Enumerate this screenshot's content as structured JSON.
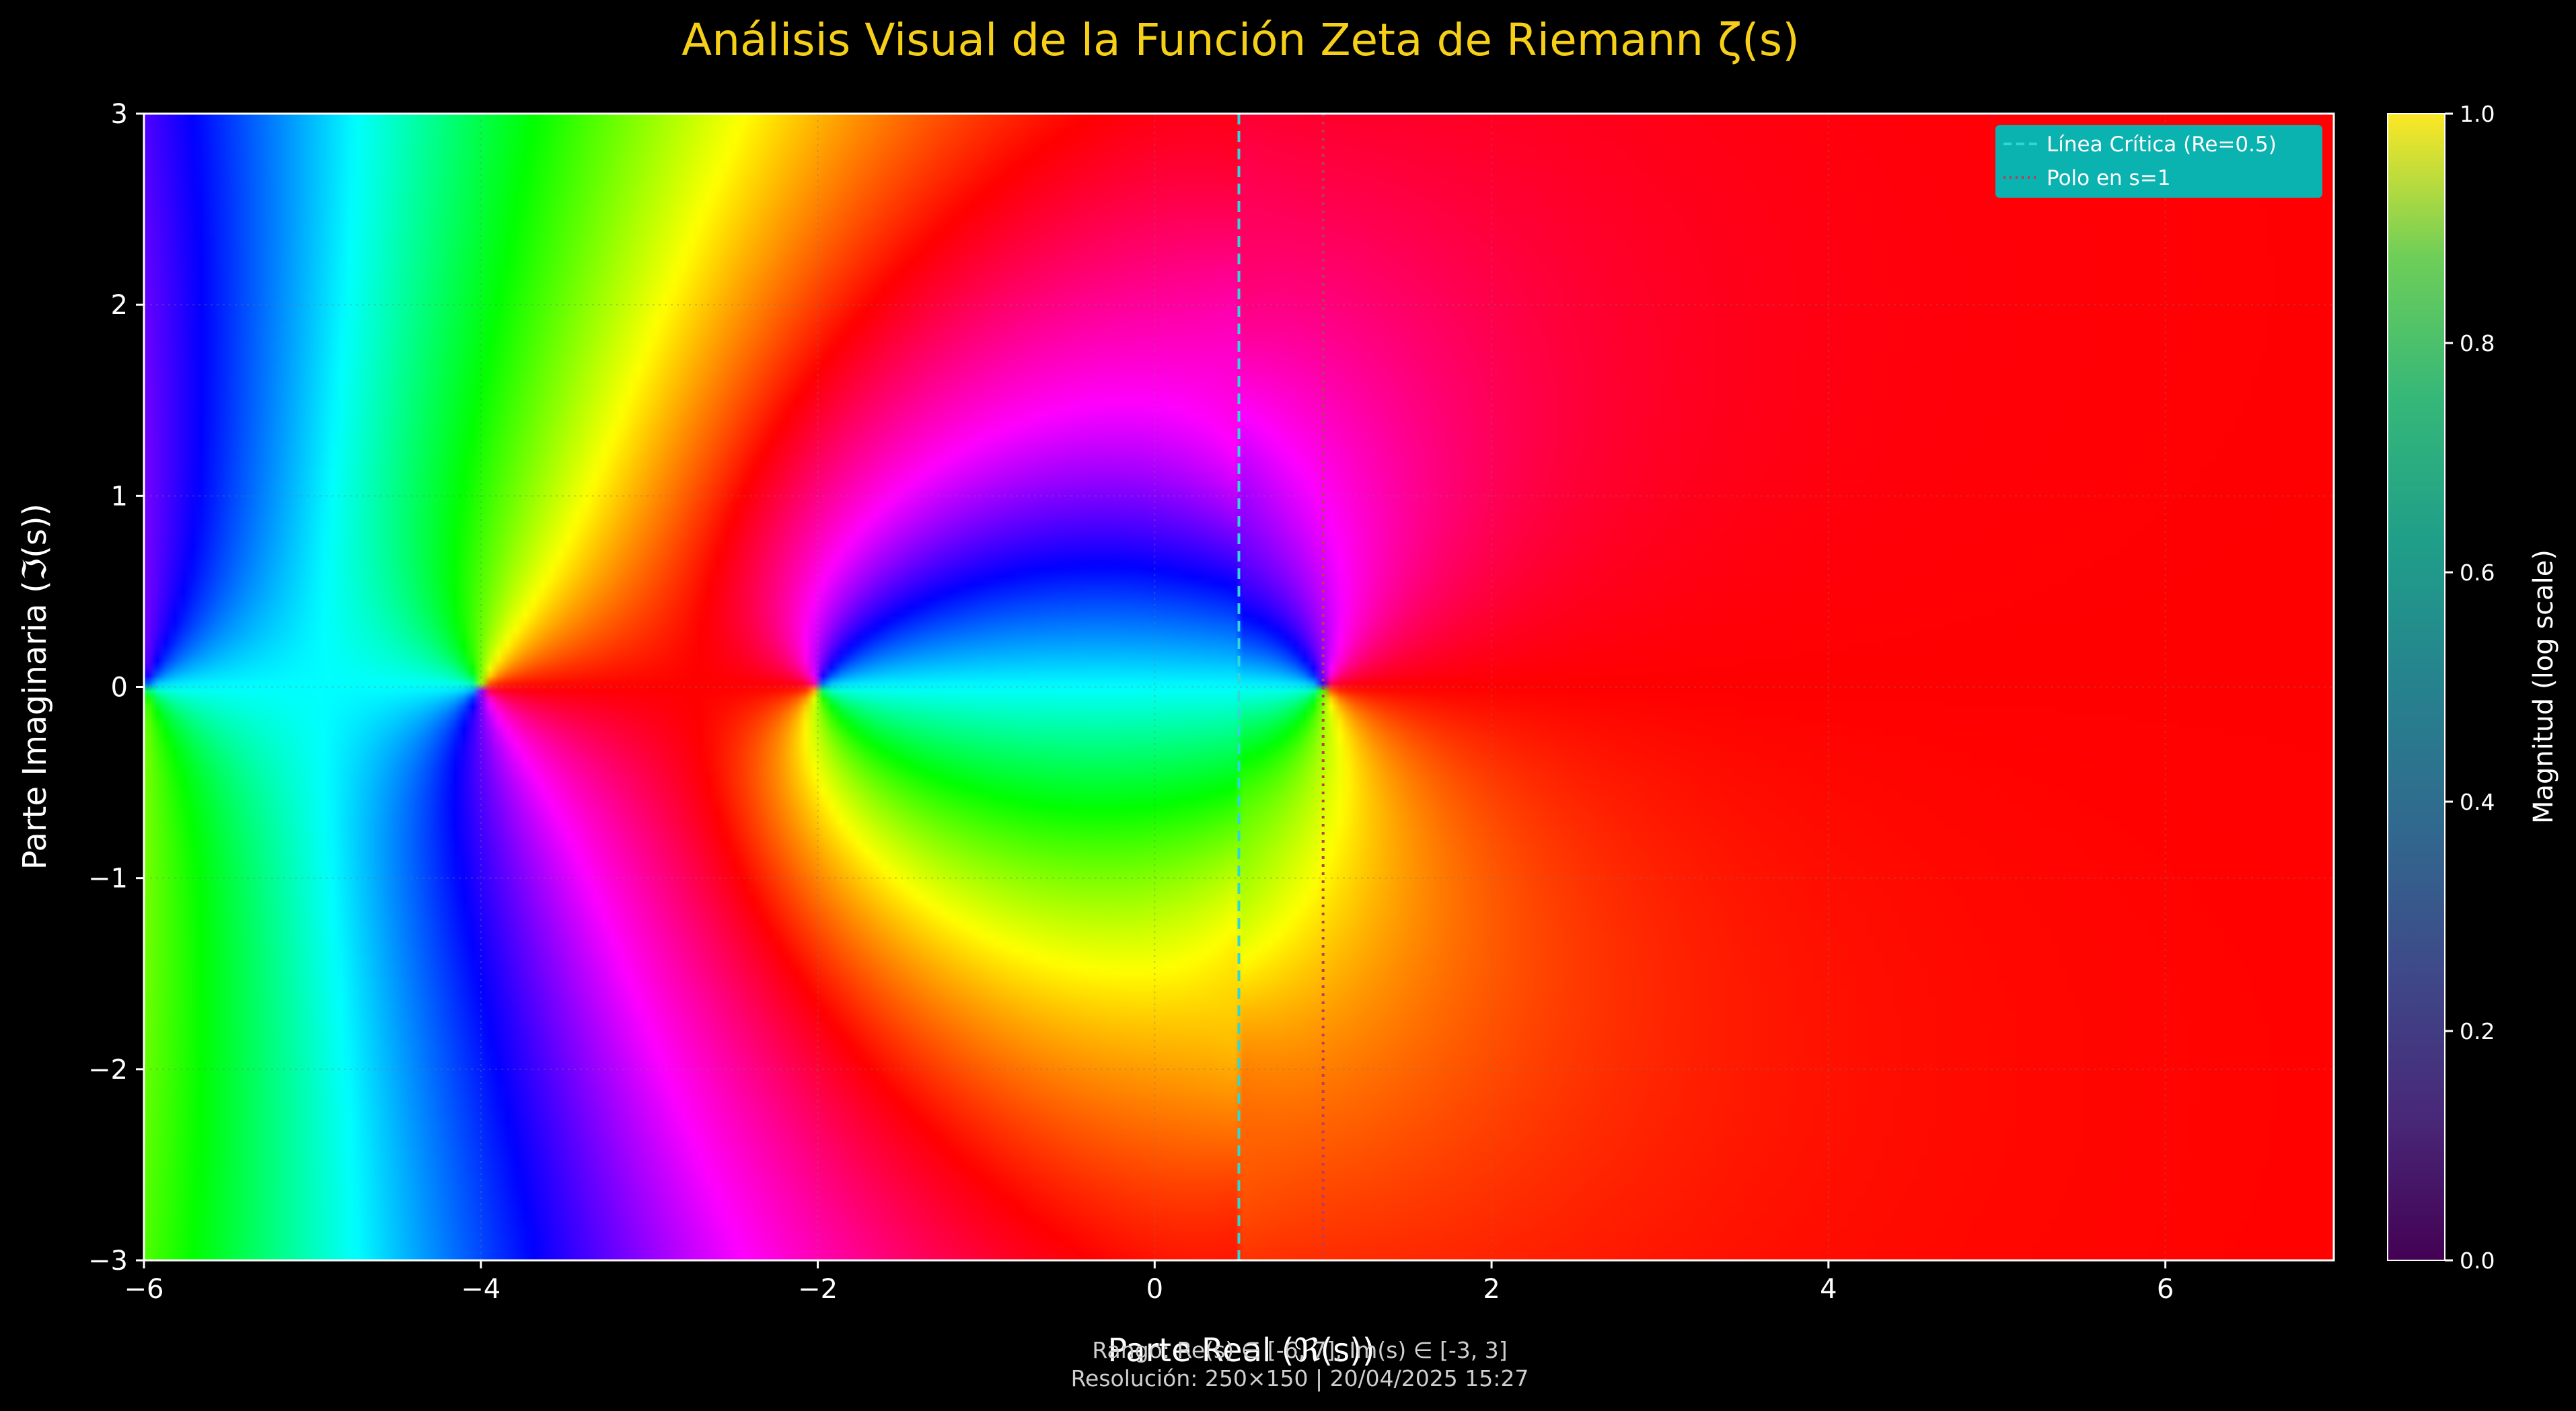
{
  "chart_data": {
    "type": "heatmap",
    "title": "Análisis Visual de la Función Zeta de Riemann ζ(s)",
    "xlabel": "Parte Real (ℜ(s))",
    "ylabel": "Parte Imaginaria (ℑ(s))",
    "xlim": [
      -6,
      7
    ],
    "ylim": [
      -3,
      3
    ],
    "xticks": [
      -6,
      -4,
      -2,
      0,
      2,
      4,
      6
    ],
    "xtick_labels": [
      "−6",
      "−4",
      "−2",
      "0",
      "2",
      "4",
      "6"
    ],
    "yticks": [
      -3,
      -2,
      -1,
      0,
      1,
      2,
      3
    ],
    "ytick_labels": [
      "−3",
      "−2",
      "−1",
      "0",
      "1",
      "2",
      "3"
    ],
    "grid": true,
    "colorbar": {
      "label": "Magnitud (log scale)",
      "range": [
        0.0,
        1.0
      ],
      "ticks": [
        0.0,
        0.2,
        0.4,
        0.6,
        0.8,
        1.0
      ],
      "tick_labels": [
        "0.0",
        "0.2",
        "0.4",
        "0.6",
        "0.8",
        "1.0"
      ],
      "colormap": "viridis"
    },
    "color_encoding": "hue = arg ζ(s) (domain coloring, hsv)",
    "zeros_visible": [
      -4,
      -2
    ],
    "reference_lines": [
      {
        "name": "Línea Crítica (Re=0.5)",
        "x": 0.5,
        "style": "dashed",
        "color": "#2fd7d7"
      },
      {
        "name": "Polo en s=1",
        "x": 1,
        "style": "dotted",
        "color": "#b4405a"
      }
    ],
    "legend_position": "top-right",
    "footer": [
      "Rango: Re(s) ∈ [-6, 7], Im(s) ∈ [-3, 3]",
      "Resolución: 250×150 | 20/04/2025 15:27"
    ]
  },
  "colors": {
    "background": "#000000",
    "title": "#f5cf18",
    "legend_bg": "#0ab2b0",
    "critical_line": "#2fd7d7",
    "pole_line": "#b4405a"
  }
}
